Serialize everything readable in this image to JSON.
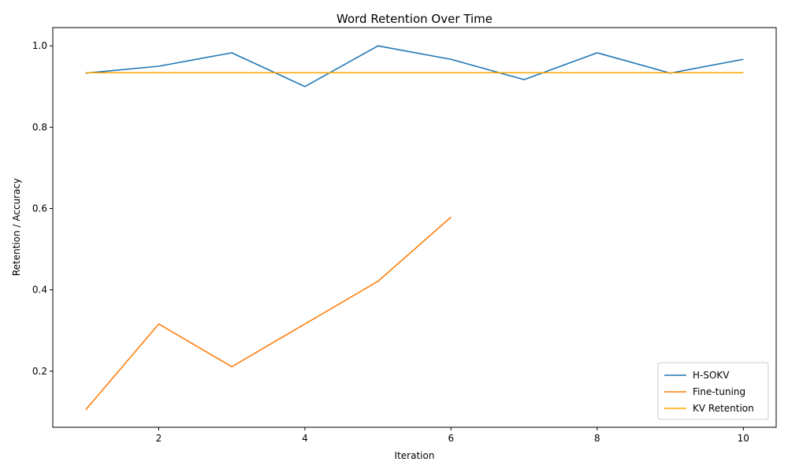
{
  "chart_data": {
    "type": "line",
    "title": "Word Retention Over Time",
    "xlabel": "Iteration",
    "ylabel": "Retention / Accuracy",
    "xlim": [
      0.55,
      10.45
    ],
    "ylim": [
      0.062,
      1.045
    ],
    "xticks": [
      2,
      4,
      6,
      8,
      10
    ],
    "yticks": [
      0.2,
      0.4,
      0.6,
      0.8,
      1.0
    ],
    "grid": false,
    "legend_position": "lower-right",
    "series": [
      {
        "name": "H-SOKV",
        "color": "#1f77b4",
        "x": [
          1,
          2,
          3,
          4,
          5,
          6,
          7,
          8,
          9,
          10
        ],
        "y": [
          0.933,
          0.95,
          0.983,
          0.9,
          1.0,
          0.967,
          0.917,
          0.983,
          0.933,
          0.967
        ]
      },
      {
        "name": "Fine-tuning",
        "color": "#ff7f0e",
        "x": [
          1,
          2,
          3,
          4,
          5,
          6
        ],
        "y": [
          0.105,
          0.316,
          0.211,
          0.316,
          0.421,
          0.579
        ]
      },
      {
        "name": "KV Retention",
        "color": "#ffa500",
        "x": [
          1,
          2,
          3,
          4,
          5,
          6,
          7,
          8,
          9,
          10
        ],
        "y": [
          0.934,
          0.934,
          0.934,
          0.934,
          0.934,
          0.934,
          0.934,
          0.934,
          0.934,
          0.934
        ]
      }
    ]
  }
}
